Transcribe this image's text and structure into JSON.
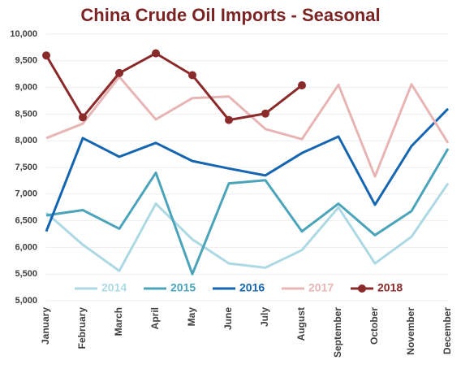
{
  "chart_data": {
    "type": "line",
    "title": "China Crude Oil Imports - Seasonal",
    "categories": [
      "January",
      "February",
      "March",
      "April",
      "May",
      "June",
      "July",
      "August",
      "September",
      "October",
      "November",
      "December"
    ],
    "series": [
      {
        "name": "2014",
        "color": "#acd9e3",
        "markers": false,
        "values": [
          6650,
          6050,
          5560,
          6820,
          6150,
          5700,
          5620,
          5950,
          6750,
          5700,
          6200,
          7200
        ]
      },
      {
        "name": "2015",
        "color": "#4ba4b9",
        "markers": false,
        "values": [
          6600,
          6700,
          6350,
          7400,
          5500,
          7200,
          7260,
          6300,
          6820,
          6230,
          6680,
          7850
        ]
      },
      {
        "name": "2016",
        "color": "#1565b0",
        "markers": false,
        "values": [
          6300,
          8050,
          7700,
          7960,
          7620,
          7480,
          7350,
          7770,
          8080,
          6800,
          7900,
          8600
        ]
      },
      {
        "name": "2017",
        "color": "#e8b5b5",
        "markers": false,
        "values": [
          8050,
          8320,
          9200,
          8400,
          8800,
          8830,
          8220,
          8030,
          9050,
          7330,
          9060,
          7960
        ]
      },
      {
        "name": "2018",
        "color": "#8b2a2a",
        "markers": true,
        "values": [
          9600,
          8440,
          9270,
          9640,
          9230,
          8390,
          8510,
          9040,
          null,
          null,
          null,
          null
        ]
      }
    ],
    "ylim": [
      5000,
      10000
    ],
    "yticks": [
      {
        "value": 5000,
        "label": "5,000"
      },
      {
        "value": 5500,
        "label": "5,500"
      },
      {
        "value": 6000,
        "label": "6,000"
      },
      {
        "value": 6500,
        "label": "6,500"
      },
      {
        "value": 7000,
        "label": "7,000"
      },
      {
        "value": 7500,
        "label": "7,500"
      },
      {
        "value": 8000,
        "label": "8,000"
      },
      {
        "value": 8500,
        "label": "8,500"
      },
      {
        "value": 9000,
        "label": "9,000"
      },
      {
        "value": 9500,
        "label": "9,500"
      },
      {
        "value": 10000,
        "label": "10,000"
      }
    ],
    "grid": true,
    "legend": "bottom"
  }
}
